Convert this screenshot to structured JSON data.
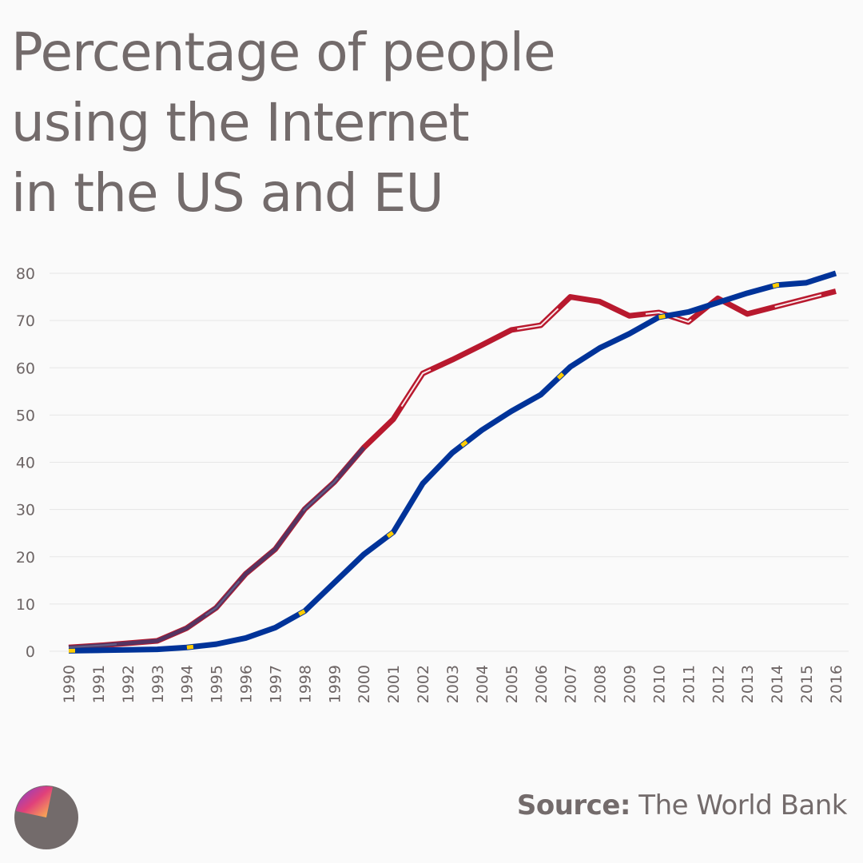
{
  "title": "Percentage of people\nusing the Internet\nin the US and EU",
  "source": {
    "label": "Source:",
    "value": " The World Bank"
  },
  "colors": {
    "us": "#b8192e",
    "eu": "#003399",
    "text": "#736b6b",
    "grid": "#e6e6e6",
    "eu_star": "#ffcc00"
  },
  "chart_data": {
    "type": "line",
    "title": "Percentage of people using the Internet in the US and EU",
    "xlabel": "",
    "ylabel": "",
    "ylim": [
      0,
      80
    ],
    "yticks": [
      0,
      10,
      20,
      30,
      40,
      50,
      60,
      70,
      80
    ],
    "grid": true,
    "x": [
      1990,
      1991,
      1992,
      1993,
      1994,
      1995,
      1996,
      1997,
      1998,
      1999,
      2000,
      2001,
      2002,
      2003,
      2004,
      2005,
      2006,
      2007,
      2008,
      2009,
      2010,
      2011,
      2012,
      2013,
      2014,
      2015,
      2016
    ],
    "series": [
      {
        "key": "us",
        "style": "US flag pattern",
        "values": [
          0.8,
          1.2,
          1.7,
          2.2,
          4.9,
          9.2,
          16.4,
          21.6,
          30.1,
          35.8,
          43.1,
          49.1,
          58.8,
          61.7,
          64.8,
          68.0,
          69.0,
          75.0,
          74.0,
          71.0,
          71.7,
          69.7,
          74.7,
          71.4,
          73.0,
          74.6,
          76.2
        ]
      },
      {
        "key": "eu",
        "style": "EU flag pattern",
        "values": [
          0.1,
          0.2,
          0.3,
          0.4,
          0.8,
          1.5,
          2.8,
          5.0,
          8.5,
          14.5,
          20.5,
          25.2,
          35.5,
          42.0,
          46.8,
          50.8,
          54.3,
          60.2,
          64.2,
          67.2,
          70.7,
          71.8,
          73.8,
          75.8,
          77.5,
          78.0,
          80.0
        ]
      }
    ]
  }
}
